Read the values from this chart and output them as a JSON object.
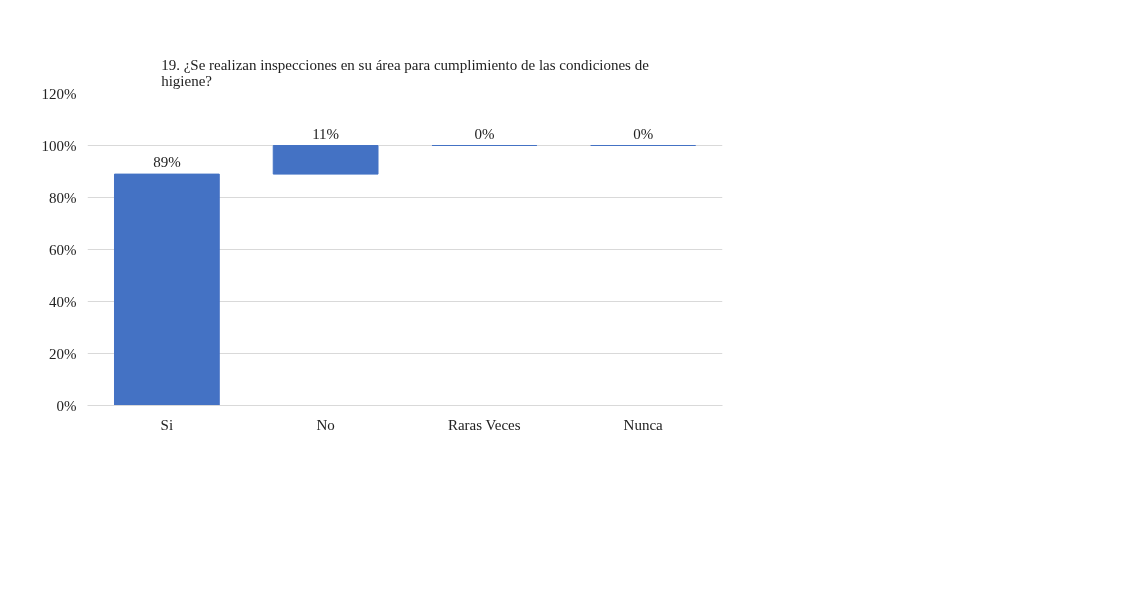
{
  "chart_data": {
    "type": "bar",
    "title": "19. ¿Se realizan inspecciones en su área para cumplimiento de las condiciones de higiene?",
    "categories": [
      "Si",
      "No",
      "Raras Veces",
      "Nunca"
    ],
    "values": [
      89,
      11,
      0,
      0
    ],
    "base": [
      0,
      89,
      100,
      100
    ],
    "value_labels": [
      "89%",
      "11%",
      "0%",
      "0%"
    ],
    "color": "#4472c4",
    "ylim": [
      0,
      120
    ],
    "yticks": [
      {
        "value": 0,
        "label": "0%"
      },
      {
        "value": 20,
        "label": "20%"
      },
      {
        "value": 40,
        "label": "40%"
      },
      {
        "value": 60,
        "label": "60%"
      },
      {
        "value": 80,
        "label": "80%"
      },
      {
        "value": 100,
        "label": "100%"
      },
      {
        "value": 120,
        "label": "120%"
      }
    ],
    "grid": "y"
  }
}
